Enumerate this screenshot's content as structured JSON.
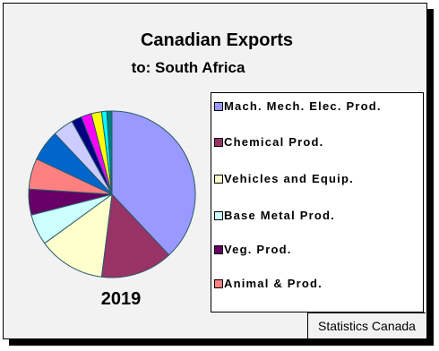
{
  "chart_data": {
    "type": "pie",
    "title": "Canadian Exports",
    "subtitle": "to: South Africa",
    "label": "2019",
    "source": "Statistics Canada",
    "categories": [
      "Mach. Mech. Elec. Prod.",
      "Chemical Prod.",
      "Vehicles and Equip.",
      "Base Metal Prod.",
      "Veg. Prod.",
      "Animal & Prod.",
      null,
      null,
      null,
      null,
      null,
      null,
      null
    ],
    "values": [
      38,
      14,
      13,
      6,
      5,
      6,
      6,
      4,
      2,
      2,
      2,
      1,
      1
    ],
    "colors": [
      "#9999ff",
      "#993366",
      "#ffffcc",
      "#ccffff",
      "#660066",
      "#ff8080",
      "#0066cc",
      "#ccccff",
      "#000080",
      "#ff00ff",
      "#ffff00",
      "#00ffff",
      "#008080"
    ]
  }
}
